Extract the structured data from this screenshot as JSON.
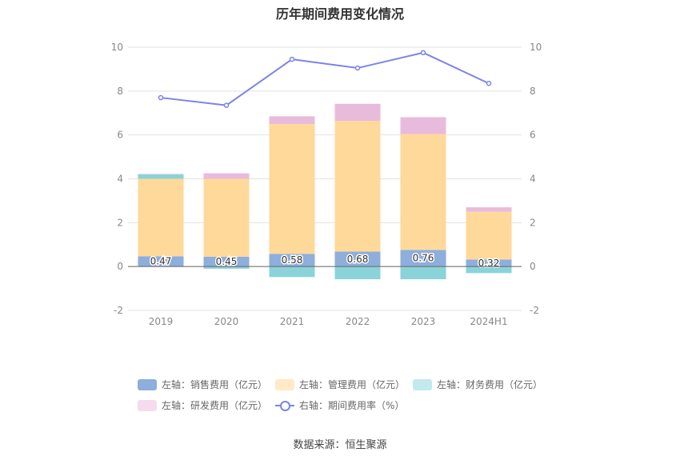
{
  "chart_data": {
    "type": "bar",
    "title": "历年期间费用变化情况",
    "categories": [
      "2019",
      "2020",
      "2021",
      "2022",
      "2023",
      "2024H1"
    ],
    "series": [
      {
        "name": "左轴：销售费用（亿元）",
        "axis": "left",
        "color": "#8eaedc",
        "values": [
          0.47,
          0.45,
          0.58,
          0.68,
          0.76,
          0.32
        ],
        "show_labels": true
      },
      {
        "name": "左轴：管理费用（亿元）",
        "axis": "left",
        "color": "#ffd99a",
        "values": [
          3.53,
          3.55,
          5.92,
          5.96,
          5.28,
          2.18
        ]
      },
      {
        "name": "左轴：财务费用（亿元）",
        "axis": "left",
        "color": "#8ad3d9",
        "values": [
          0.2,
          -0.1,
          -0.48,
          -0.58,
          -0.58,
          -0.3
        ]
      },
      {
        "name": "左轴：研发费用（亿元）",
        "axis": "left",
        "color": "#e8bbdc",
        "values": [
          0.02,
          0.25,
          0.35,
          0.78,
          0.77,
          0.2
        ]
      },
      {
        "name": "右轴：期间费用率（%）",
        "axis": "right",
        "type": "line",
        "color": "#7b83eb",
        "values": [
          7.7,
          7.35,
          9.45,
          9.05,
          9.75,
          8.35
        ]
      }
    ],
    "left_axis": {
      "min": -2,
      "max": 10,
      "ticks": [
        -2,
        0,
        2,
        4,
        6,
        8,
        10
      ]
    },
    "right_axis": {
      "min": -2,
      "max": 10,
      "ticks": [
        -2,
        0,
        2,
        4,
        6,
        8,
        10
      ]
    },
    "grid": true,
    "legend_position": "bottom"
  },
  "source_text": "数据来源：恒生聚源"
}
